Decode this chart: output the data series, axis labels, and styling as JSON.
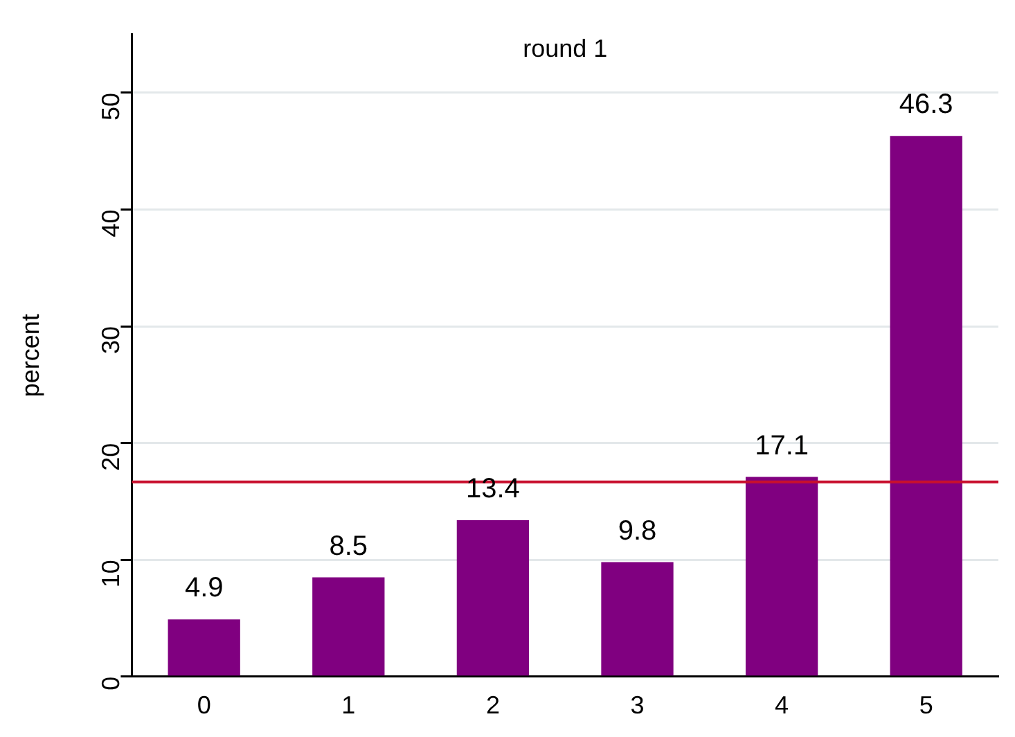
{
  "chart_data": {
    "type": "bar",
    "title": "round 1",
    "ylabel": "percent",
    "categories": [
      "0",
      "1",
      "2",
      "3",
      "4",
      "5"
    ],
    "values": [
      4.9,
      8.5,
      13.4,
      9.8,
      17.1,
      46.3
    ],
    "color": "#800080",
    "data_labels": true,
    "ylim": [
      0,
      55
    ],
    "yticks": [
      0,
      10,
      20,
      30,
      40,
      50
    ],
    "grid": "y",
    "ref_lines": [
      {
        "axis": "y",
        "value": 16.67,
        "color": "#c8102e"
      }
    ]
  }
}
